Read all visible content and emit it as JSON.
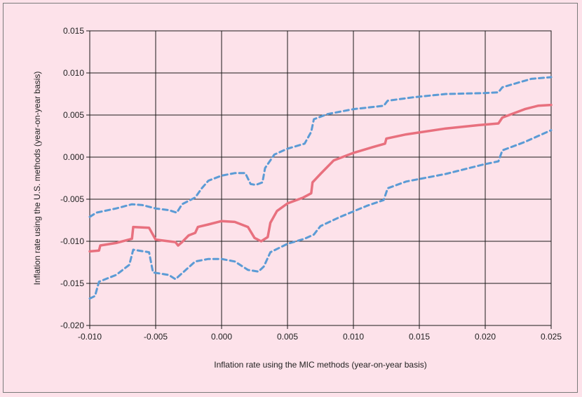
{
  "chart_data": {
    "type": "line",
    "title": "",
    "xlabel": "Inflation rate using the MIC methods (year-on-year basis)",
    "ylabel": "Inflation rate using the U.S. methods (year-on-year basis)",
    "xlim": [
      -0.01,
      0.025
    ],
    "ylim": [
      -0.02,
      0.015
    ],
    "grid": true,
    "legend": "none",
    "x_ticks": [
      "-0.010",
      "-0.005",
      "0.000",
      "0.005",
      "0.010",
      "0.015",
      "0.020",
      "0.025"
    ],
    "y_ticks": [
      "0.015",
      "0.010",
      "0.005",
      "0.000",
      "-0.005",
      "-0.010",
      "-0.015",
      "-0.020"
    ],
    "series": [
      {
        "color": "#e8707e",
        "style": "solid",
        "points": [
          [
            -0.01,
            -0.0112
          ],
          [
            -0.0093,
            -0.0111
          ],
          [
            -0.0092,
            -0.0105
          ],
          [
            -0.008,
            -0.0102
          ],
          [
            -0.0068,
            -0.0097
          ],
          [
            -0.0067,
            -0.0083
          ],
          [
            -0.0055,
            -0.0084
          ],
          [
            -0.005,
            -0.0098
          ],
          [
            -0.004,
            -0.01
          ],
          [
            -0.0035,
            -0.0101
          ],
          [
            -0.0033,
            -0.0105
          ],
          [
            -0.003,
            -0.0101
          ],
          [
            -0.0025,
            -0.0093
          ],
          [
            -0.002,
            -0.009
          ],
          [
            -0.0018,
            -0.0083
          ],
          [
            -0.001,
            -0.008
          ],
          [
            0.0,
            -0.0076
          ],
          [
            0.001,
            -0.0077
          ],
          [
            0.002,
            -0.0083
          ],
          [
            0.0025,
            -0.0096
          ],
          [
            0.003,
            -0.01
          ],
          [
            0.0035,
            -0.0095
          ],
          [
            0.0037,
            -0.0078
          ],
          [
            0.0042,
            -0.0064
          ],
          [
            0.005,
            -0.0055
          ],
          [
            0.0062,
            -0.0048
          ],
          [
            0.0068,
            -0.0043
          ],
          [
            0.0069,
            -0.003
          ],
          [
            0.0075,
            -0.002
          ],
          [
            0.0085,
            -0.0004
          ],
          [
            0.01,
            0.0005
          ],
          [
            0.0115,
            0.0012
          ],
          [
            0.0124,
            0.0016
          ],
          [
            0.0125,
            0.0022
          ],
          [
            0.014,
            0.0027
          ],
          [
            0.017,
            0.0034
          ],
          [
            0.0195,
            0.0038
          ],
          [
            0.021,
            0.004
          ],
          [
            0.0213,
            0.0047
          ],
          [
            0.023,
            0.0057
          ],
          [
            0.024,
            0.0061
          ],
          [
            0.025,
            0.0062
          ]
        ]
      },
      {
        "color": "#5b9bd5",
        "style": "dashed",
        "points": [
          [
            -0.01,
            -0.0071
          ],
          [
            -0.0095,
            -0.0066
          ],
          [
            -0.008,
            -0.0061
          ],
          [
            -0.0068,
            -0.0056
          ],
          [
            -0.006,
            -0.0057
          ],
          [
            -0.005,
            -0.0061
          ],
          [
            -0.004,
            -0.0063
          ],
          [
            -0.0034,
            -0.0066
          ],
          [
            -0.003,
            -0.0056
          ],
          [
            -0.002,
            -0.0048
          ],
          [
            -0.0015,
            -0.0037
          ],
          [
            -0.001,
            -0.0028
          ],
          [
            0.0,
            -0.0022
          ],
          [
            0.001,
            -0.0019
          ],
          [
            0.0018,
            -0.0019
          ],
          [
            0.0022,
            -0.0032
          ],
          [
            0.0026,
            -0.0033
          ],
          [
            0.0031,
            -0.003
          ],
          [
            0.0033,
            -0.0013
          ],
          [
            0.004,
            0.0003
          ],
          [
            0.005,
            0.001
          ],
          [
            0.0063,
            0.0016
          ],
          [
            0.0068,
            0.003
          ],
          [
            0.007,
            0.0045
          ],
          [
            0.008,
            0.0051
          ],
          [
            0.01,
            0.0057
          ],
          [
            0.0123,
            0.0061
          ],
          [
            0.0126,
            0.0067
          ],
          [
            0.0145,
            0.0071
          ],
          [
            0.017,
            0.0075
          ],
          [
            0.0198,
            0.0076
          ],
          [
            0.021,
            0.0077
          ],
          [
            0.0213,
            0.0083
          ],
          [
            0.0235,
            0.0093
          ],
          [
            0.025,
            0.0095
          ]
        ]
      },
      {
        "color": "#5b9bd5",
        "style": "dashed",
        "points": [
          [
            -0.01,
            -0.0168
          ],
          [
            -0.0096,
            -0.0165
          ],
          [
            -0.0093,
            -0.0148
          ],
          [
            -0.008,
            -0.014
          ],
          [
            -0.007,
            -0.0128
          ],
          [
            -0.0067,
            -0.011
          ],
          [
            -0.0055,
            -0.0113
          ],
          [
            -0.0052,
            -0.0137
          ],
          [
            -0.004,
            -0.014
          ],
          [
            -0.0035,
            -0.0145
          ],
          [
            -0.003,
            -0.0138
          ],
          [
            -0.002,
            -0.0124
          ],
          [
            -0.001,
            -0.0121
          ],
          [
            0.0,
            -0.0121
          ],
          [
            0.001,
            -0.0124
          ],
          [
            0.002,
            -0.0134
          ],
          [
            0.0028,
            -0.0136
          ],
          [
            0.0032,
            -0.013
          ],
          [
            0.0037,
            -0.0113
          ],
          [
            0.005,
            -0.0103
          ],
          [
            0.0063,
            -0.0097
          ],
          [
            0.007,
            -0.0092
          ],
          [
            0.0075,
            -0.0082
          ],
          [
            0.009,
            -0.0071
          ],
          [
            0.011,
            -0.0058
          ],
          [
            0.0123,
            -0.0051
          ],
          [
            0.0126,
            -0.0037
          ],
          [
            0.014,
            -0.0029
          ],
          [
            0.017,
            -0.002
          ],
          [
            0.0198,
            -0.0009
          ],
          [
            0.021,
            -0.0005
          ],
          [
            0.0213,
            0.0008
          ],
          [
            0.023,
            0.0018
          ],
          [
            0.025,
            0.0032
          ]
        ]
      }
    ]
  }
}
